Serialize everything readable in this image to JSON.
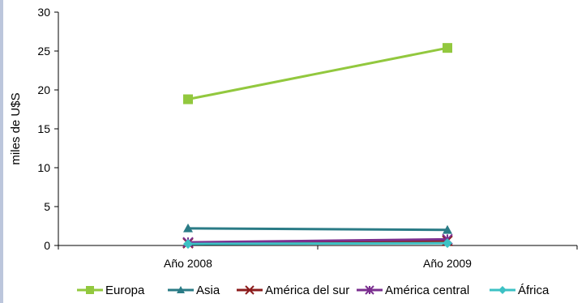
{
  "chart_data": {
    "type": "line",
    "categories": [
      "Año 2008",
      "Año 2009"
    ],
    "ylabel": "miles de U$S",
    "ylim": [
      0,
      30
    ],
    "yticks": [
      0,
      5,
      10,
      15,
      20,
      25,
      30
    ],
    "grid": false,
    "legend_position": "bottom",
    "series": [
      {
        "name": "Europa",
        "values": [
          18.8,
          25.4
        ],
        "color": "#92c83e",
        "marker": "square"
      },
      {
        "name": "Asia",
        "values": [
          2.2,
          2.0
        ],
        "color": "#2a7b86",
        "marker": "triangle"
      },
      {
        "name": "América del sur",
        "values": [
          0.3,
          0.6
        ],
        "color": "#8c1c1c",
        "marker": "x"
      },
      {
        "name": "América central",
        "values": [
          0.4,
          0.8
        ],
        "color": "#7b2f8f",
        "marker": "star"
      },
      {
        "name": "África",
        "values": [
          0.2,
          0.3
        ],
        "color": "#3cc1c4",
        "marker": "diamond"
      }
    ]
  }
}
